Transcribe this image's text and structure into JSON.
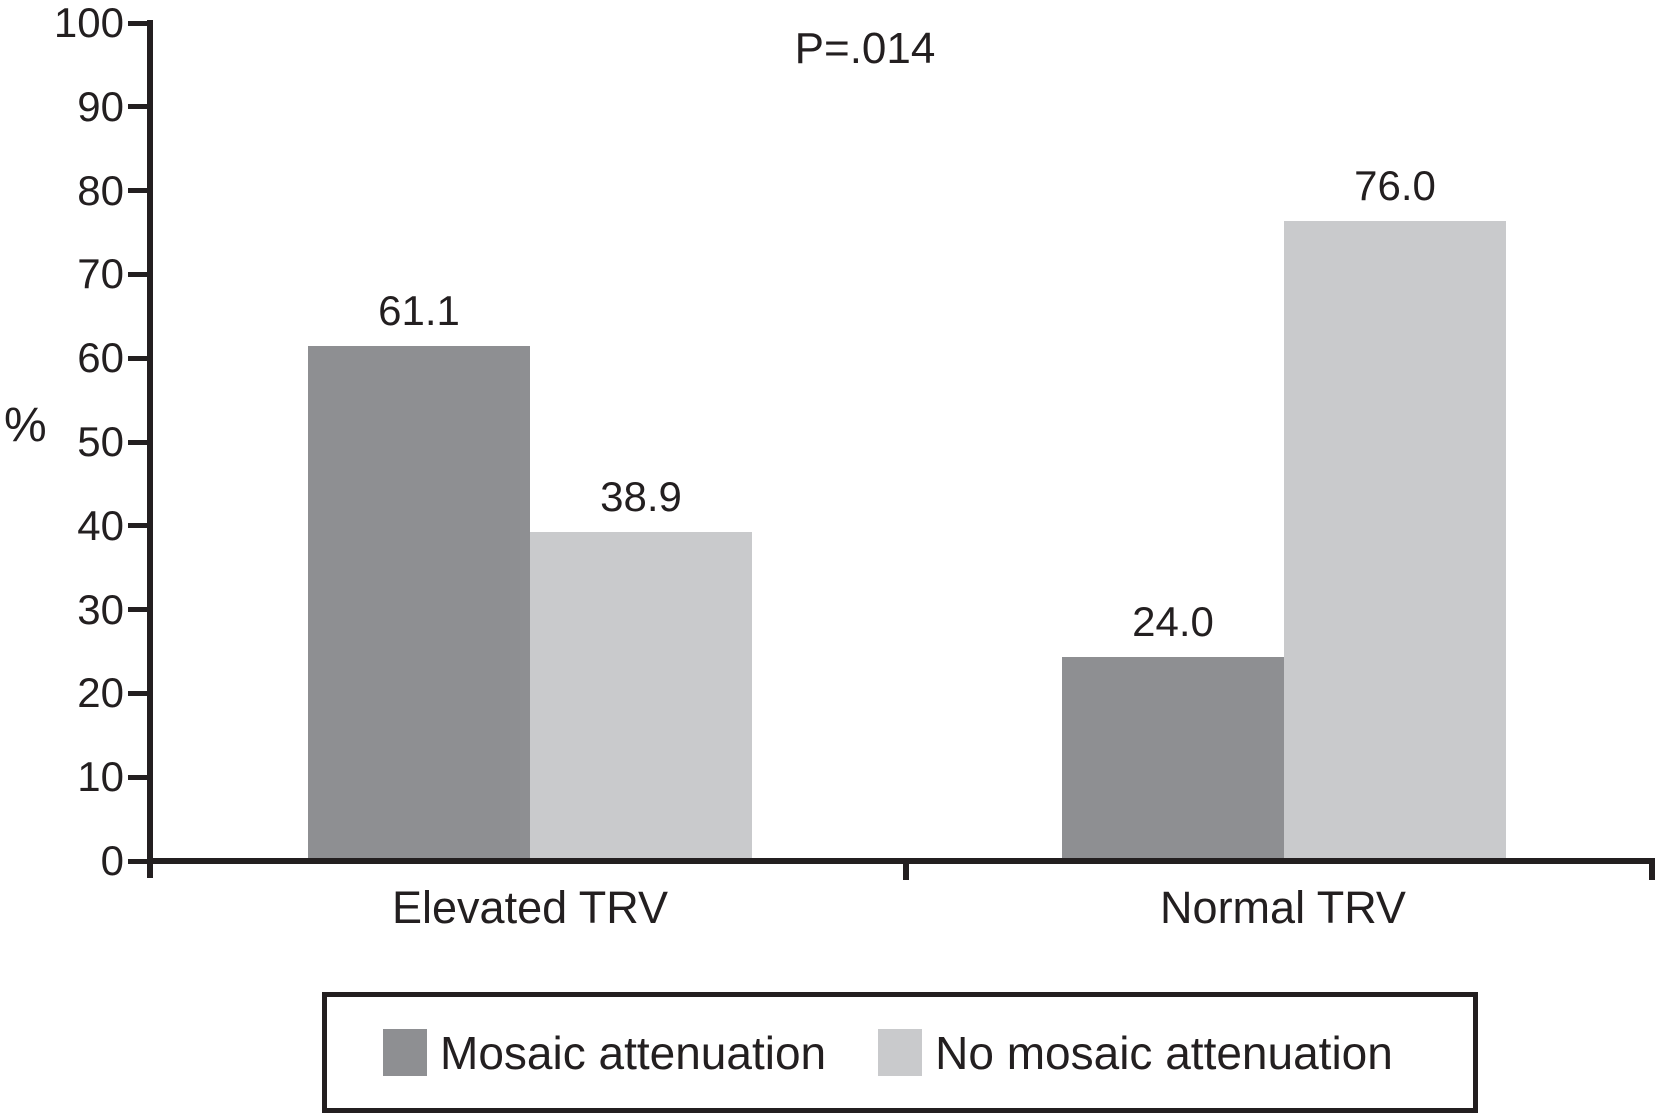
{
  "chart_data": {
    "type": "bar",
    "title": "",
    "annotation": "P=.014",
    "ylabel": "%",
    "xlabel": "",
    "ylim": [
      0,
      100
    ],
    "yticks": [
      0,
      10,
      20,
      30,
      40,
      50,
      60,
      70,
      80,
      90,
      100
    ],
    "categories": [
      "Elevated TRV",
      "Normal TRV"
    ],
    "series": [
      {
        "name": "Mosaic attenuation",
        "color": "#8e8f92",
        "values": [
          61.1,
          24.0
        ],
        "labels": [
          "61.1",
          "24.0"
        ]
      },
      {
        "name": "No mosaic attenuation",
        "color": "#c9cacc",
        "values": [
          38.9,
          76.0
        ],
        "labels": [
          "38.9",
          "76.0"
        ]
      }
    ],
    "grid": false,
    "legend_position": "bottom",
    "colors": {
      "axis": "#231f20",
      "text": "#231f20",
      "background": "#ffffff"
    }
  }
}
